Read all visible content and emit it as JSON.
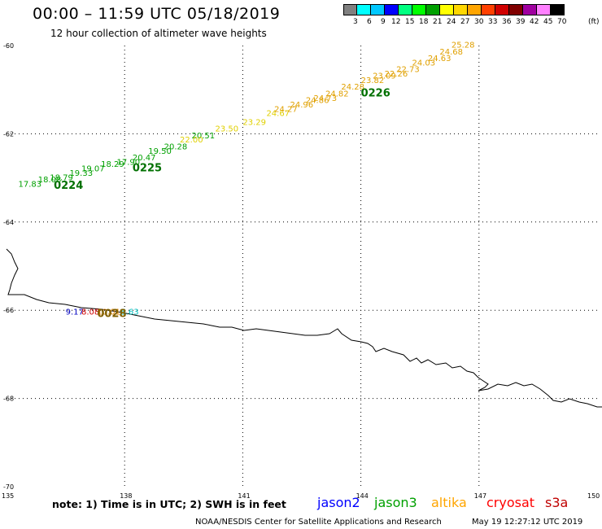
{
  "header": {
    "title": "00:00 – 11:59 UTC 05/18/2019",
    "subtitle": "12 hour collection of altimeter wave heights"
  },
  "legend": {
    "unit": "(ft)",
    "colors": [
      "#808080",
      "#00ffff",
      "#00c8ff",
      "#0000ff",
      "#00ff80",
      "#00ff00",
      "#00a000",
      "#ffff00",
      "#ffd700",
      "#ffa500",
      "#ff4000",
      "#d00000",
      "#800000",
      "#a000a0",
      "#ff80ff",
      "#000000"
    ],
    "labels": [
      "3",
      "6",
      "9",
      "12",
      "15",
      "18",
      "21",
      "24",
      "27",
      "30",
      "33",
      "36",
      "39",
      "42",
      "45",
      "70"
    ]
  },
  "map": {
    "lon_ticks": [
      "135",
      "138",
      "141",
      "144",
      "147",
      "150"
    ],
    "lat_ticks": [
      "-60",
      "-62",
      "-64",
      "-66",
      "-68",
      "-70"
    ],
    "lon_range": [
      135,
      150
    ],
    "lat_range": [
      -60,
      -70
    ],
    "grid": "dotted",
    "coastline": true
  },
  "tracks": [
    {
      "satellite": "jason3",
      "pass": "0224",
      "pass_color": "#007000"
    },
    {
      "satellite": "jason3",
      "pass": "0225",
      "pass_color": "#007000"
    },
    {
      "satellite": "jason3",
      "pass": "0226",
      "pass_color": "#007000"
    },
    {
      "satellite": "mixed",
      "pass": "0028",
      "pass_color": "#806000"
    }
  ],
  "wave_labels": [
    {
      "text": "17.83",
      "color": "#00a000",
      "lon": 135.3,
      "lat": -63.2
    },
    {
      "text": "18.08",
      "color": "#00a000",
      "lon": 135.8,
      "lat": -63.1
    },
    {
      "text": "18.79",
      "color": "#00a000",
      "lon": 136.1,
      "lat": -63.05
    },
    {
      "text": "19.33",
      "color": "#00a000",
      "lon": 136.6,
      "lat": -62.95
    },
    {
      "text": "19.07",
      "color": "#00a000",
      "lon": 136.9,
      "lat": -62.85
    },
    {
      "text": "18.29",
      "color": "#00a000",
      "lon": 137.4,
      "lat": -62.75
    },
    {
      "text": "17.90",
      "color": "#00a000",
      "lon": 137.8,
      "lat": -62.7
    },
    {
      "text": "20.47",
      "color": "#00a000",
      "lon": 138.2,
      "lat": -62.6
    },
    {
      "text": "19.50",
      "color": "#00a000",
      "lon": 138.6,
      "lat": -62.45
    },
    {
      "text": "20.28",
      "color": "#00a000",
      "lon": 139.0,
      "lat": -62.35
    },
    {
      "text": "20.51",
      "color": "#00a000",
      "lon": 139.7,
      "lat": -62.1
    },
    {
      "text": "22.00",
      "color": "#e0d000",
      "lon": 139.4,
      "lat": -62.2
    },
    {
      "text": "23.50",
      "color": "#e0d000",
      "lon": 140.3,
      "lat": -61.95
    },
    {
      "text": "23.29",
      "color": "#e0d000",
      "lon": 141.0,
      "lat": -61.8
    },
    {
      "text": "24.67",
      "color": "#e0d000",
      "lon": 141.6,
      "lat": -61.6
    },
    {
      "text": "24.27",
      "color": "#e0a000",
      "lon": 141.8,
      "lat": -61.5
    },
    {
      "text": "24.96",
      "color": "#e0a000",
      "lon": 142.2,
      "lat": -61.4
    },
    {
      "text": "24.86",
      "color": "#e0a000",
      "lon": 142.6,
      "lat": -61.3
    },
    {
      "text": "24.73",
      "color": "#e0a000",
      "lon": 142.8,
      "lat": -61.25
    },
    {
      "text": "24.82",
      "color": "#e0a000",
      "lon": 143.1,
      "lat": -61.15
    },
    {
      "text": "24.28",
      "color": "#e0a000",
      "lon": 143.5,
      "lat": -61.0
    },
    {
      "text": "23.82",
      "color": "#e0a000",
      "lon": 144.0,
      "lat": -60.85
    },
    {
      "text": "23.09",
      "color": "#e0a000",
      "lon": 144.3,
      "lat": -60.75
    },
    {
      "text": "22.26",
      "color": "#e0a000",
      "lon": 144.6,
      "lat": -60.7
    },
    {
      "text": "22.73",
      "color": "#e0a000",
      "lon": 144.9,
      "lat": -60.6
    },
    {
      "text": "24.03",
      "color": "#e0a000",
      "lon": 145.3,
      "lat": -60.45
    },
    {
      "text": "24.63",
      "color": "#e0a000",
      "lon": 145.7,
      "lat": -60.35
    },
    {
      "text": "24.68",
      "color": "#e0a000",
      "lon": 146.0,
      "lat": -60.2
    },
    {
      "text": "25.28",
      "color": "#e0a000",
      "lon": 146.3,
      "lat": -60.05
    },
    {
      "text": "9.17",
      "color": "#0000c0",
      "lon": 136.5,
      "lat": -66.1
    },
    {
      "text": "8.08",
      "color": "#d00000",
      "lon": 136.9,
      "lat": -66.1
    },
    {
      "text": "10.01",
      "color": "#e08000",
      "lon": 137.3,
      "lat": -66.1
    },
    {
      "text": "5.63",
      "color": "#00c0c0",
      "lon": 137.9,
      "lat": -66.1
    }
  ],
  "pass_labels": [
    {
      "text": "0224",
      "color": "#007000",
      "lon": 136.2,
      "lat": -63.25
    },
    {
      "text": "0225",
      "color": "#007000",
      "lon": 138.2,
      "lat": -62.85
    },
    {
      "text": "0226",
      "color": "#007000",
      "lon": 144.0,
      "lat": -61.15
    },
    {
      "text": "0028",
      "color": "#806000",
      "lon": 137.3,
      "lat": -66.15
    }
  ],
  "footer": {
    "note": "note: 1) Time is in UTC; 2) SWH is in feet",
    "satellites": [
      {
        "name": "jason2",
        "color": "#0000ff"
      },
      {
        "name": "jason3",
        "color": "#00a000"
      },
      {
        "name": "altika",
        "color": "#ffa500"
      },
      {
        "name": "cryosat",
        "color": "#ff0000"
      },
      {
        "name": "s3a",
        "color": "#c00000"
      }
    ],
    "credit": "NOAA/NESDIS Center for Satellite Applications and Research",
    "timestamp": "May 19 12:27:12 UTC 2019"
  }
}
